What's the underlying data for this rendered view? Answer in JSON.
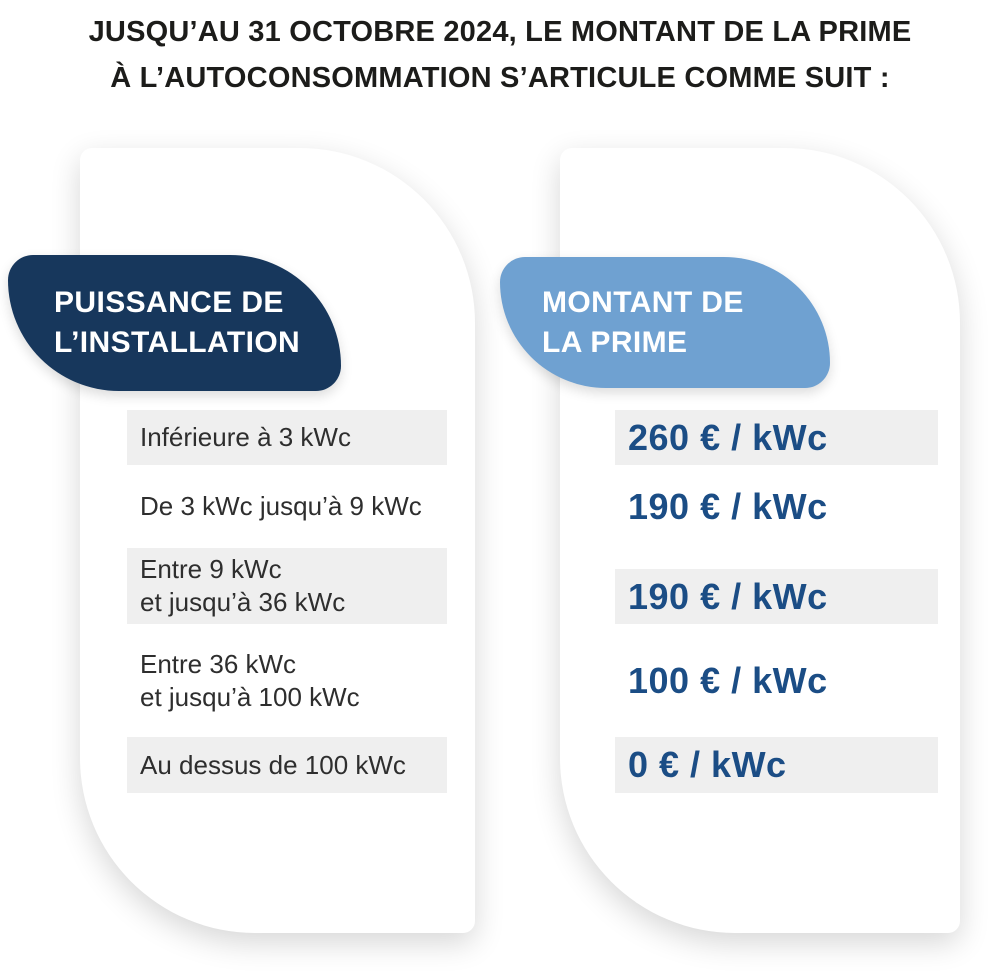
{
  "title": {
    "line1": "JUSQU’AU 31 OCTOBRE 2024, LE MONTANT DE LA PRIME",
    "line2": "À L’AUTOCONSOMMATION S’ARTICULE COMME SUIT :"
  },
  "headers": {
    "power": [
      "PUISSANCE DE",
      "L’INSTALLATION"
    ],
    "prime": [
      "MONTANT DE",
      "LA PRIME"
    ]
  },
  "table": {
    "rows": [
      {
        "power_lines": [
          "Inférieure à 3 kWc"
        ],
        "amount": "260 € / kWc",
        "shaded": true
      },
      {
        "power_lines": [
          "De 3 kWc jusqu’à 9 kWc"
        ],
        "amount": "190 € / kWc",
        "shaded": false
      },
      {
        "power_lines": [
          "Entre 9 kWc",
          "et jusqu’à 36 kWc"
        ],
        "amount": "190 € / kWc",
        "shaded": true
      },
      {
        "power_lines": [
          "Entre 36 kWc",
          "et jusqu’à 100 kWc"
        ],
        "amount": "100 € / kWc",
        "shaded": false
      },
      {
        "power_lines": [
          "Au dessus de 100 kWc"
        ],
        "amount": "0 € / kWc",
        "shaded": true
      }
    ]
  },
  "chart_data": {
    "type": "table",
    "title": "Jusqu’au 31 octobre 2024, le montant de la prime à l’autoconsommation s’articule comme suit :",
    "columns": [
      "Puissance de l’installation",
      "Montant de la prime"
    ],
    "rows": [
      [
        "Inférieure à 3 kWc",
        "260 € / kWc"
      ],
      [
        "De 3 kWc jusqu’à 9 kWc",
        "190 € / kWc"
      ],
      [
        "Entre 9 kWc et jusqu’à 36 kWc",
        "190 € / kWc"
      ],
      [
        "Entre 36 kWc et jusqu’à 100 kWc",
        "100 € / kWc"
      ],
      [
        "Au dessus de 100 kWc",
        "0 € / kWc"
      ]
    ]
  },
  "colors": {
    "navy_header": "#17375C",
    "blue_header": "#6FA1D1",
    "amount_text": "#1B4D85",
    "row_shaded": "#EFEFEF",
    "body_text": "#2E2E2E",
    "title_text": "#1C1C1A"
  }
}
